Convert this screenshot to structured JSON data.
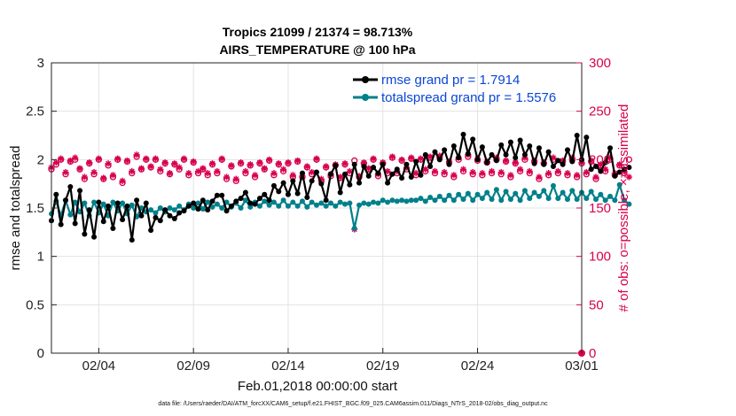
{
  "chart_data": {
    "type": "line",
    "title": "Tropics 21099 / 21374 = 98.713%",
    "subtitle": "AIRS_TEMPERATURE @ 100 hPa",
    "xlabel": "Feb.01,2018 00:00:00 start",
    "ylabel": "rmse and totalspread",
    "y2label": "# of obs: o=possible; ×=assimilated",
    "footnote": "data file: /Users/raeder/DAI/ATM_forcXX/CAM6_setup/f.e21.FHIST_BGC.f09_025.CAM6assim.011/Diags_NTrS_2018-02/obs_diag_output.nc",
    "xlim": [
      1,
      29
    ],
    "ylim": [
      0,
      3
    ],
    "y2lim": [
      0,
      300
    ],
    "x_ticks": [
      3.5,
      8.5,
      13.5,
      18.5,
      23.5,
      29
    ],
    "x_tick_labels": [
      "02/04",
      "02/09",
      "02/14",
      "02/19",
      "02/24",
      "03/01"
    ],
    "y_ticks": [
      0,
      0.5,
      1,
      1.5,
      2,
      2.5,
      3
    ],
    "y_tick_labels": [
      "0",
      "0.5",
      "1",
      "1.5",
      "2",
      "2.5",
      "3"
    ],
    "y2_ticks": [
      0,
      50,
      100,
      150,
      200,
      250,
      300
    ],
    "y2_tick_labels": [
      "0",
      "50",
      "100",
      "150",
      "200",
      "250",
      "300"
    ],
    "grid": true,
    "legend_position": "top-right",
    "colors": {
      "rmse": "#000000",
      "spread": "#00808a",
      "obs": "#d8004e",
      "legend_text": "#0a46d6",
      "axis": "#222222"
    },
    "series": [
      {
        "name": "rmse grand pr = 1.7914",
        "axis": "left",
        "x_start": 1.0,
        "x_step": 0.25,
        "values": [
          1.37,
          1.64,
          1.33,
          1.58,
          1.72,
          1.34,
          1.68,
          1.23,
          1.48,
          1.2,
          1.56,
          1.36,
          1.52,
          1.29,
          1.55,
          1.38,
          1.52,
          1.17,
          1.58,
          1.42,
          1.55,
          1.27,
          1.4,
          1.37,
          1.48,
          1.42,
          1.39,
          1.45,
          1.47,
          1.52,
          1.55,
          1.49,
          1.58,
          1.48,
          1.57,
          1.63,
          1.63,
          1.47,
          1.52,
          1.57,
          1.6,
          1.66,
          1.55,
          1.54,
          1.6,
          1.64,
          1.58,
          1.73,
          1.67,
          1.76,
          1.64,
          1.78,
          1.65,
          1.86,
          1.61,
          1.78,
          1.87,
          1.75,
          1.58,
          1.85,
          1.94,
          1.66,
          1.85,
          1.74,
          1.95,
          1.76,
          1.93,
          1.83,
          1.92,
          1.86,
          1.95,
          1.76,
          1.85,
          1.9,
          1.81,
          1.95,
          1.82,
          1.98,
          1.84,
          2.05,
          1.93,
          2.08,
          2.0,
          2.1,
          1.95,
          2.14,
          2.02,
          2.26,
          2.06,
          2.21,
          2.0,
          2.13,
          1.97,
          2.05,
          1.99,
          2.15,
          2.05,
          2.18,
          2.02,
          2.2,
          2.05,
          2.14,
          1.96,
          2.12,
          1.95,
          2.08,
          1.93,
          1.99,
          1.95,
          2.1,
          1.98,
          2.25,
          2.0,
          2.23,
          1.9,
          1.93,
          1.88,
          1.97,
          2.12,
          1.83,
          1.87,
          1.9,
          1.92
        ]
      },
      {
        "name": "totalspread grand pr = 1.5576",
        "axis": "left",
        "x_start": 1.0,
        "x_step": 0.25,
        "values": [
          1.44,
          1.57,
          1.42,
          1.58,
          1.43,
          1.56,
          1.46,
          1.55,
          1.42,
          1.56,
          1.45,
          1.54,
          1.42,
          1.56,
          1.47,
          1.55,
          1.44,
          1.53,
          1.41,
          1.5,
          1.46,
          1.48,
          1.45,
          1.5,
          1.46,
          1.5,
          1.48,
          1.52,
          1.48,
          1.54,
          1.5,
          1.55,
          1.49,
          1.56,
          1.51,
          1.54,
          1.5,
          1.56,
          1.51,
          1.55,
          1.5,
          1.58,
          1.51,
          1.56,
          1.52,
          1.57,
          1.53,
          1.56,
          1.52,
          1.58,
          1.52,
          1.56,
          1.52,
          1.57,
          1.51,
          1.56,
          1.53,
          1.55,
          1.52,
          1.55,
          1.52,
          1.56,
          1.54,
          1.55,
          1.29,
          1.53,
          1.55,
          1.54,
          1.56,
          1.55,
          1.58,
          1.56,
          1.58,
          1.57,
          1.58,
          1.57,
          1.58,
          1.58,
          1.6,
          1.57,
          1.61,
          1.58,
          1.62,
          1.58,
          1.63,
          1.58,
          1.64,
          1.59,
          1.65,
          1.58,
          1.64,
          1.6,
          1.66,
          1.59,
          1.69,
          1.58,
          1.67,
          1.59,
          1.65,
          1.58,
          1.68,
          1.6,
          1.66,
          1.62,
          1.68,
          1.6,
          1.73,
          1.6,
          1.66,
          1.59,
          1.68,
          1.59,
          1.66,
          1.6,
          1.67,
          1.59,
          1.64,
          1.58,
          1.62,
          1.58,
          1.74,
          1.58,
          1.54
        ]
      },
      {
        "name": "obs possible",
        "axis": "right",
        "marker": "circle",
        "x_start": 1.0,
        "x_step": 0.25,
        "values": [
          190,
          195,
          200,
          185,
          198,
          200,
          190,
          180,
          196,
          185,
          200,
          180,
          194,
          182,
          200,
          176,
          198,
          186,
          203,
          190,
          200,
          192,
          200,
          188,
          196,
          185,
          195,
          190,
          200,
          184,
          197,
          186,
          190,
          184,
          195,
          186,
          200,
          180,
          193,
          178,
          196,
          186,
          194,
          182,
          196,
          190,
          199,
          184,
          195,
          188,
          196,
          182,
          198,
          182,
          192,
          185,
          200,
          178,
          192,
          183,
          194,
          181,
          195,
          186,
          199,
          182,
          196,
          190,
          200,
          183,
          196,
          186,
          202,
          186,
          199,
          190,
          201,
          184,
          200,
          188,
          202,
          186,
          202,
          185,
          197,
          182,
          200,
          188,
          203,
          185,
          199,
          184,
          197,
          186,
          200,
          185,
          198,
          182,
          196,
          188,
          200,
          186,
          198,
          180,
          196,
          184,
          200,
          186,
          198,
          184,
          200,
          182,
          196,
          185,
          198,
          180,
          194,
          188,
          200,
          184,
          194,
          186,
          200
        ]
      },
      {
        "name": "obs assimilated",
        "axis": "right",
        "marker": "star",
        "x_start": 1.0,
        "x_step": 0.25,
        "values": [
          192,
          197,
          201,
          187,
          199,
          202,
          191,
          182,
          197,
          187,
          201,
          181,
          196,
          184,
          201,
          178,
          199,
          188,
          205,
          191,
          201,
          193,
          201,
          190,
          197,
          186,
          196,
          192,
          201,
          186,
          198,
          188,
          191,
          186,
          196,
          188,
          201,
          182,
          194,
          180,
          197,
          188,
          195,
          184,
          197,
          191,
          200,
          186,
          196,
          190,
          197,
          184,
          199,
          183,
          193,
          187,
          201,
          180,
          193,
          185,
          195,
          182,
          196,
          188,
          128,
          183,
          197,
          191,
          201,
          185,
          197,
          188,
          203,
          188,
          200,
          192,
          202,
          186,
          201,
          190,
          203,
          188,
          204,
          187,
          198,
          184,
          202,
          190,
          205,
          187,
          201,
          186,
          198,
          188,
          202,
          187,
          199,
          184,
          197,
          190,
          202,
          188,
          199,
          182,
          197,
          186,
          202,
          188,
          199,
          186,
          202,
          184,
          197,
          187,
          199,
          182,
          195,
          190,
          202,
          186,
          195,
          188,
          182
        ]
      }
    ],
    "extra_marker": {
      "name": "zero obs point",
      "x": 29.0,
      "y2": 0
    }
  }
}
